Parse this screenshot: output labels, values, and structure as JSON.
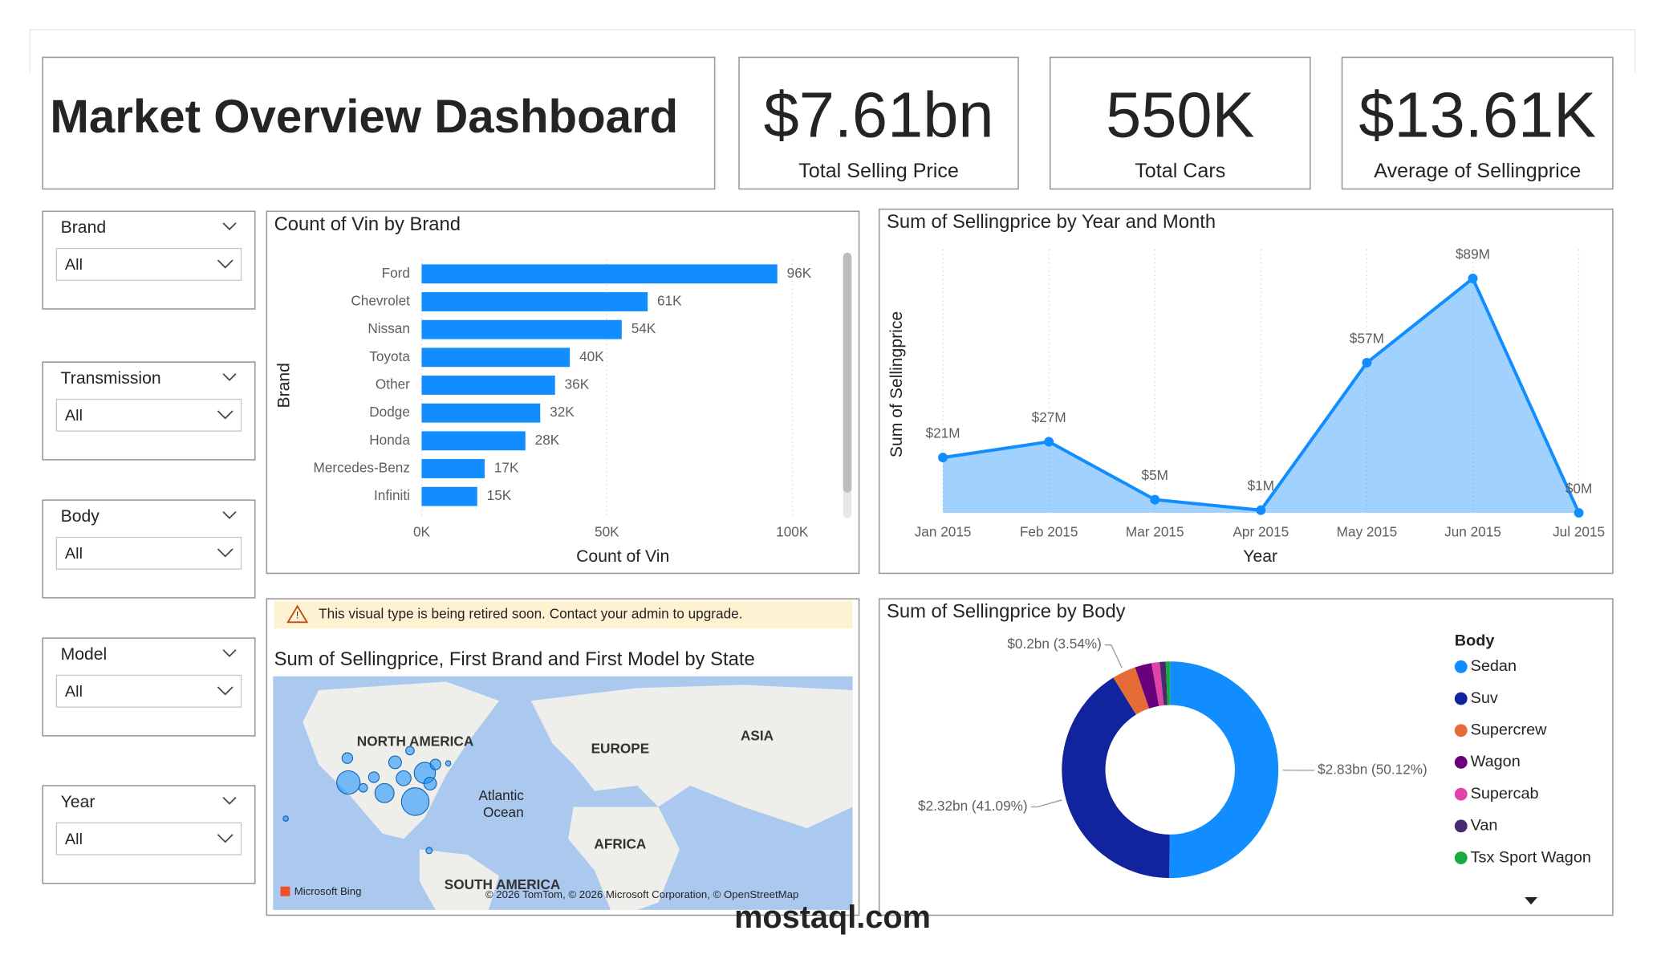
{
  "header": {
    "title": "Market Overview Dashboard"
  },
  "kpis": [
    {
      "value": "$7.61bn",
      "label": "Total Selling Price"
    },
    {
      "value": "550K",
      "label": "Total Cars"
    },
    {
      "value": "$13.61K",
      "label": "Average of Sellingprice"
    }
  ],
  "slicers": [
    {
      "label": "Brand",
      "selection": "All"
    },
    {
      "label": "Transmission",
      "selection": "All"
    },
    {
      "label": "Body",
      "selection": "All"
    },
    {
      "label": "Model",
      "selection": "All"
    },
    {
      "label": "Year",
      "selection": "All"
    }
  ],
  "chart_data": [
    {
      "type": "bar",
      "orientation": "horizontal",
      "title": "Count of Vin by Brand",
      "x_label": "Count of Vin",
      "y_label": "Brand",
      "categories": [
        "Ford",
        "Chevrolet",
        "Nissan",
        "Toyota",
        "Other",
        "Dodge",
        "Honda",
        "Mercedes-Benz",
        "Infiniti"
      ],
      "values": [
        96000,
        61000,
        54000,
        40000,
        36000,
        32000,
        28000,
        17000,
        15000
      ],
      "value_labels": [
        "96K",
        "61K",
        "54K",
        "40K",
        "36K",
        "32K",
        "28K",
        "17K",
        "15K"
      ],
      "color": "#118dff",
      "xlim": [
        0,
        100000
      ],
      "xticks": [
        {
          "value": 0,
          "label": "0K"
        },
        {
          "value": 50000,
          "label": "50K"
        },
        {
          "value": 100000,
          "label": "100K"
        }
      ],
      "grid": true
    },
    {
      "type": "area",
      "title": "Sum of Sellingprice by Year and Month",
      "x_label": "Year",
      "y_label": "Sum of Sellingprice",
      "categories": [
        "Jan 2015",
        "Feb 2015",
        "Mar 2015",
        "Apr 2015",
        "May 2015",
        "Jun 2015",
        "Jul 2015"
      ],
      "values": [
        21,
        27,
        5,
        1,
        57,
        89,
        0
      ],
      "value_labels": [
        "$21M",
        "$27M",
        "$5M",
        "$1M",
        "$57M",
        "$89M",
        "$0M"
      ],
      "color": "#118dff",
      "ylim": [
        0,
        100
      ],
      "grid": true
    },
    {
      "type": "donut",
      "title": "Sum of Sellingprice by Body",
      "legend_title": "Body",
      "categories": [
        "Sedan",
        "Suv",
        "Supercrew",
        "Wagon",
        "Supercab",
        "Van",
        "Tsx Sport Wagon"
      ],
      "values": [
        50.12,
        41.09,
        3.54,
        2.5,
        1.2,
        0.9,
        0.65
      ],
      "value_labels": [
        "$2.83bn (50.12%)",
        "$2.32bn (41.09%)",
        "$0.2bn (3.54%)",
        null,
        null,
        null,
        null
      ],
      "colors": [
        "#118dff",
        "#12239e",
        "#e66c37",
        "#6b007b",
        "#e044a7",
        "#4a2a6e",
        "#1aab40"
      ]
    }
  ],
  "map": {
    "warning": "This visual type is being retired soon. Contact your admin to upgrade.",
    "title": "Sum of Sellingprice, First Brand and First Model by State",
    "labels": [
      "NORTH AMERICA",
      "EUROPE",
      "ASIA",
      "Atlantic",
      "Ocean",
      "AFRICA",
      "SOUTH AMERICA"
    ],
    "logo": "Microsoft Bing",
    "attribution": "© 2026 TomTom, © 2026 Microsoft Corporation, © OpenStreetMap"
  },
  "watermark": "mostaql.com"
}
